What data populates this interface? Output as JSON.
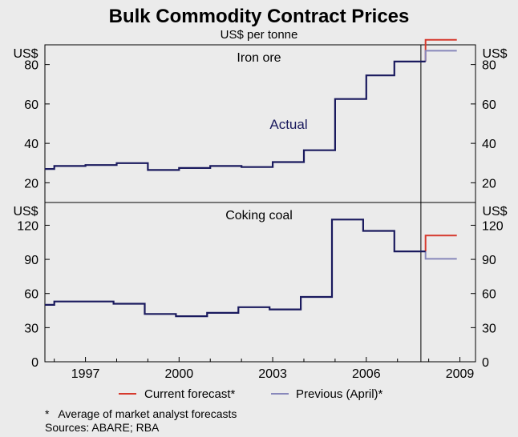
{
  "chart_data": {
    "title": "Bulk Commodity Contract Prices",
    "subtitle": "US$ per tonne",
    "colors": {
      "actual": "#1a1a5e",
      "current_forecast": "#d63a2e",
      "previous_forecast": "#8888bb",
      "axis": "#000000",
      "background": "#ebebeb"
    },
    "x_axis": {
      "tick_labels": [
        "1997",
        "2000",
        "2003",
        "2006",
        "2009"
      ],
      "tick_years": [
        1997,
        2000,
        2003,
        2006,
        2009
      ],
      "range": [
        1995.7,
        2009.5
      ],
      "forecast_divider_year": 2007.75
    },
    "panels": [
      {
        "id": "iron-ore",
        "type": "line",
        "title": "Iron ore",
        "unit_label": "US$",
        "ylim": [
          10,
          90
        ],
        "yticks": [
          20,
          40,
          60,
          80
        ],
        "annotation": "Actual",
        "series": [
          {
            "name": "Actual",
            "kind": "actual",
            "points": [
              [
                1995.7,
                27
              ],
              [
                1996.0,
                27
              ],
              [
                1996.0,
                28.5
              ],
              [
                1997.0,
                28.5
              ],
              [
                1997.0,
                29
              ],
              [
                1998.0,
                29
              ],
              [
                1998.0,
                30
              ],
              [
                1999.0,
                30
              ],
              [
                1999.0,
                26.5
              ],
              [
                2000.0,
                26.5
              ],
              [
                2000.0,
                27.5
              ],
              [
                2001.0,
                27.5
              ],
              [
                2001.0,
                28.5
              ],
              [
                2002.0,
                28.5
              ],
              [
                2002.0,
                28
              ],
              [
                2003.0,
                28
              ],
              [
                2003.0,
                30.5
              ],
              [
                2004.0,
                30.5
              ],
              [
                2004.0,
                36.5
              ],
              [
                2005.0,
                36.5
              ],
              [
                2005.0,
                62.5
              ],
              [
                2006.0,
                62.5
              ],
              [
                2006.0,
                74.5
              ],
              [
                2006.9,
                74.5
              ],
              [
                2006.9,
                81.5
              ],
              [
                2007.9,
                81.5
              ]
            ]
          },
          {
            "name": "Current forecast*",
            "kind": "current",
            "points": [
              [
                2007.9,
                81.5
              ],
              [
                2007.9,
                92.5
              ],
              [
                2008.9,
                92.5
              ]
            ]
          },
          {
            "name": "Previous (April)*",
            "kind": "previous",
            "points": [
              [
                2007.9,
                81.5
              ],
              [
                2007.9,
                87
              ],
              [
                2008.9,
                87
              ]
            ]
          }
        ]
      },
      {
        "id": "coking-coal",
        "type": "line",
        "title": "Coking coal",
        "unit_label": "US$",
        "ylim": [
          0,
          140
        ],
        "yticks": [
          0,
          30,
          60,
          90,
          120
        ],
        "series": [
          {
            "name": "Actual",
            "kind": "actual",
            "points": [
              [
                1995.7,
                50
              ],
              [
                1996.0,
                50
              ],
              [
                1996.0,
                53
              ],
              [
                1997.9,
                53
              ],
              [
                1997.9,
                51
              ],
              [
                1998.9,
                51
              ],
              [
                1998.9,
                42
              ],
              [
                1999.9,
                42
              ],
              [
                1999.9,
                40
              ],
              [
                2000.9,
                40
              ],
              [
                2000.9,
                43
              ],
              [
                2001.9,
                43
              ],
              [
                2001.9,
                48
              ],
              [
                2002.9,
                48
              ],
              [
                2002.9,
                46
              ],
              [
                2003.9,
                46
              ],
              [
                2003.9,
                57
              ],
              [
                2004.9,
                57
              ],
              [
                2004.9,
                125
              ],
              [
                2005.9,
                125
              ],
              [
                2005.9,
                115
              ],
              [
                2006.9,
                115
              ],
              [
                2006.9,
                97
              ],
              [
                2007.9,
                97
              ]
            ]
          },
          {
            "name": "Current forecast*",
            "kind": "current",
            "points": [
              [
                2007.9,
                97
              ],
              [
                2007.9,
                111
              ],
              [
                2008.9,
                111
              ]
            ]
          },
          {
            "name": "Previous (April)*",
            "kind": "previous",
            "points": [
              [
                2007.9,
                97
              ],
              [
                2007.9,
                90.5
              ],
              [
                2008.9,
                90.5
              ]
            ]
          }
        ]
      }
    ],
    "legend": [
      {
        "label": "Current forecast*",
        "kind": "current"
      },
      {
        "label": "Previous (April)*",
        "kind": "previous"
      }
    ],
    "footnote": "*   Average of market analyst forecasts",
    "sources": "Sources: ABARE; RBA"
  }
}
